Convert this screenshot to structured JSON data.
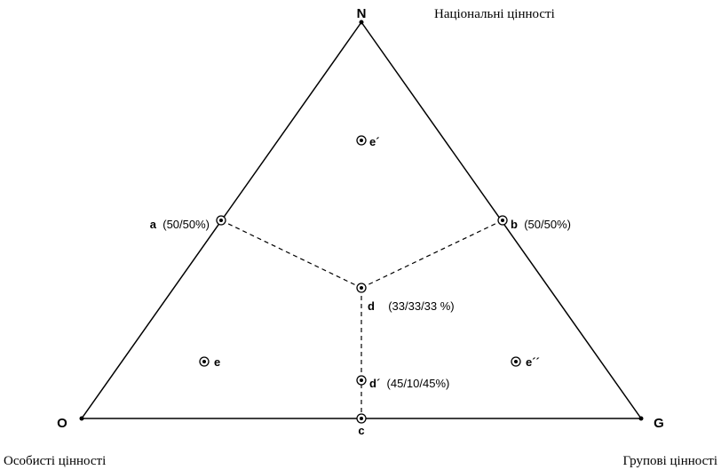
{
  "vertices": {
    "N": {
      "label": "N",
      "caption": "Національні цінності"
    },
    "O": {
      "label": "O",
      "caption": "Особисті цінності"
    },
    "G": {
      "label": "G",
      "caption": "Групові цінності"
    }
  },
  "points": {
    "a": {
      "name": "a",
      "value": "(50/50%)"
    },
    "b": {
      "name": "b",
      "value": "(50/50%)"
    },
    "c": {
      "name": "c",
      "value": ""
    },
    "d": {
      "name": "d",
      "value": "(33/33/33 %)"
    },
    "d_prime": {
      "name": "d´",
      "value": "(45/10/45%)"
    },
    "e": {
      "name": "e",
      "value": ""
    },
    "e_prime": {
      "name": "e´",
      "value": ""
    },
    "e_double_prime": {
      "name": "e´´",
      "value": ""
    }
  },
  "colors": {
    "stroke": "#000000",
    "background": "#ffffff"
  }
}
